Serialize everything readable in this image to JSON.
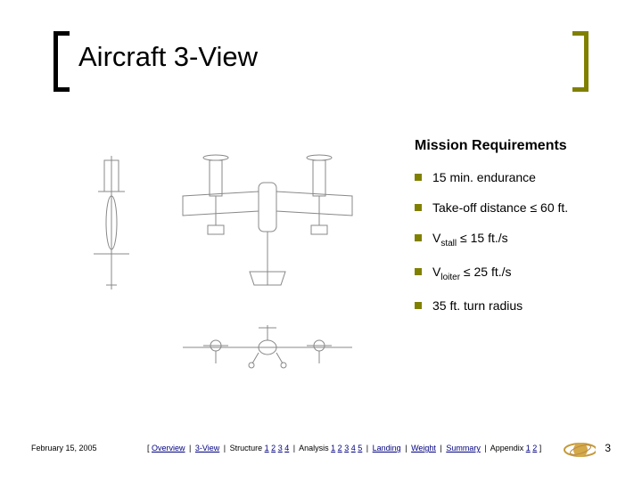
{
  "title": "Aircraft 3-View",
  "colors": {
    "accent": "#808000",
    "text": "#000000",
    "link": "#000080",
    "bg": "#ffffff"
  },
  "requirements": {
    "heading": "Mission Requirements",
    "items": [
      {
        "text": "15 min. endurance"
      },
      {
        "text": "Take-off distance ≤ 60 ft."
      },
      {
        "pre": "V",
        "sub": "stall",
        "post": " ≤ 15 ft./s"
      },
      {
        "pre": "V",
        "sub": "loiter",
        "post": " ≤ 25 ft./s"
      },
      {
        "text": "35 ft. turn radius"
      }
    ]
  },
  "footer": {
    "date": "February 15, 2005",
    "page": "3",
    "nav": [
      {
        "label": "Overview",
        "link": true
      },
      {
        "label": "3-View",
        "link": true
      },
      {
        "label": "Structure",
        "link": false,
        "nums": [
          "1",
          "2",
          "3",
          "4"
        ]
      },
      {
        "label": "Analysis",
        "link": false,
        "nums": [
          "1",
          "2",
          "3",
          "4",
          "5"
        ]
      },
      {
        "label": "Landing",
        "link": true
      },
      {
        "label": "Weight",
        "link": true
      },
      {
        "label": "Summary",
        "link": true
      },
      {
        "label": "Appendix",
        "link": false,
        "nums": [
          "1",
          "2"
        ]
      }
    ]
  }
}
